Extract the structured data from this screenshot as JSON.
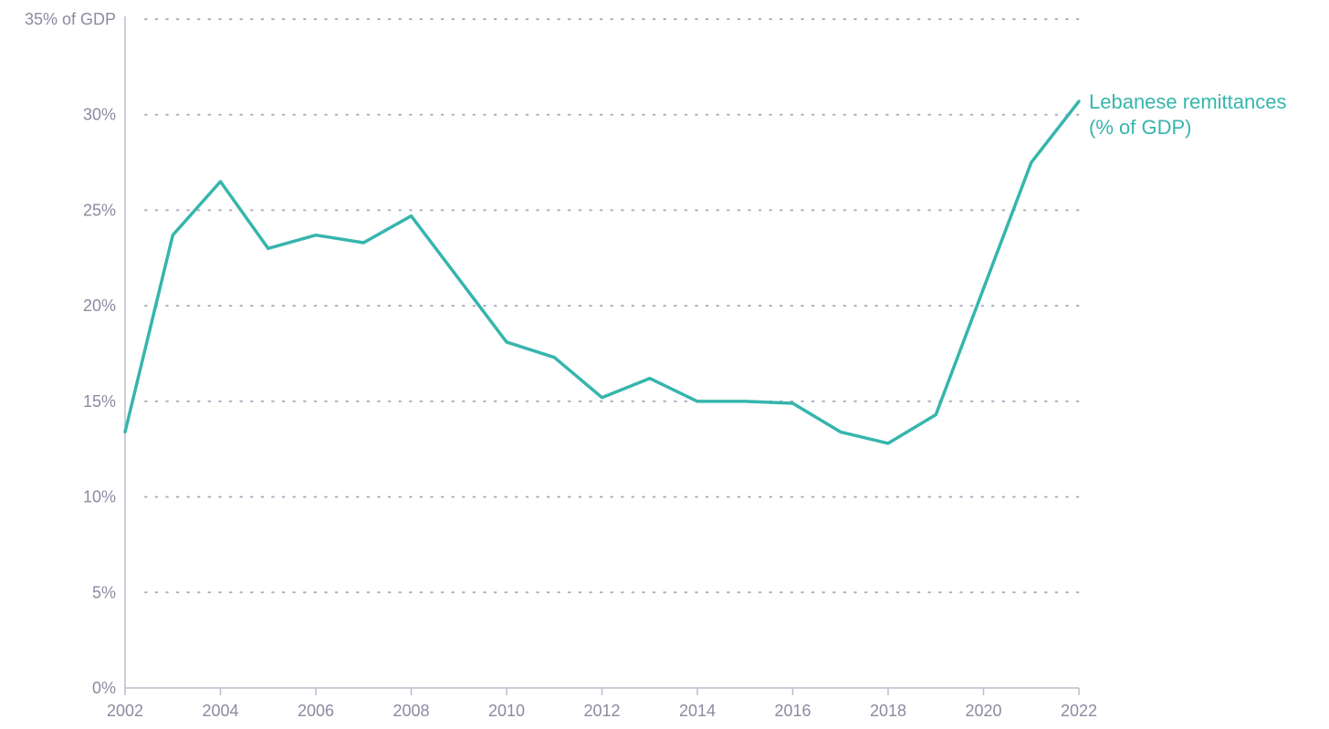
{
  "colors": {
    "series": "#36b5ad",
    "axis_text": "#8c8aa1",
    "grid": "#aeadbe",
    "axis_line": "#bdbccb"
  },
  "chart_data": {
    "type": "line",
    "title": "",
    "xlabel": "",
    "ylabel": "",
    "xlim": [
      2002,
      2022
    ],
    "ylim": [
      0,
      35
    ],
    "grid": "horizontal dotted",
    "x_ticks": [
      2002,
      2004,
      2006,
      2008,
      2010,
      2012,
      2014,
      2016,
      2018,
      2020,
      2022
    ],
    "x_tick_labels": [
      "2002",
      "2004",
      "2006",
      "2008",
      "2010",
      "2012",
      "2014",
      "2016",
      "2018",
      "2020",
      "2022"
    ],
    "y_ticks": [
      0,
      5,
      10,
      15,
      20,
      25,
      30,
      35
    ],
    "y_tick_labels": [
      "0%",
      "5%",
      "10%",
      "15%",
      "20%",
      "25%",
      "30%",
      "35% of GDP"
    ],
    "series": [
      {
        "name": "Lebanese remittances (% of GDP)",
        "label_lines": [
          "Lebanese remittances",
          "(% of GDP)"
        ],
        "x": [
          2002,
          2003,
          2004,
          2005,
          2006,
          2007,
          2008,
          2009,
          2010,
          2011,
          2012,
          2013,
          2014,
          2015,
          2016,
          2017,
          2018,
          2019,
          2020,
          2021,
          2022
        ],
        "y": [
          13.4,
          23.7,
          26.5,
          23.0,
          23.7,
          23.3,
          24.7,
          21.4,
          18.1,
          17.3,
          15.2,
          16.2,
          15.0,
          15.0,
          14.9,
          13.4,
          12.8,
          14.3,
          20.9,
          27.5,
          30.7
        ]
      }
    ]
  }
}
